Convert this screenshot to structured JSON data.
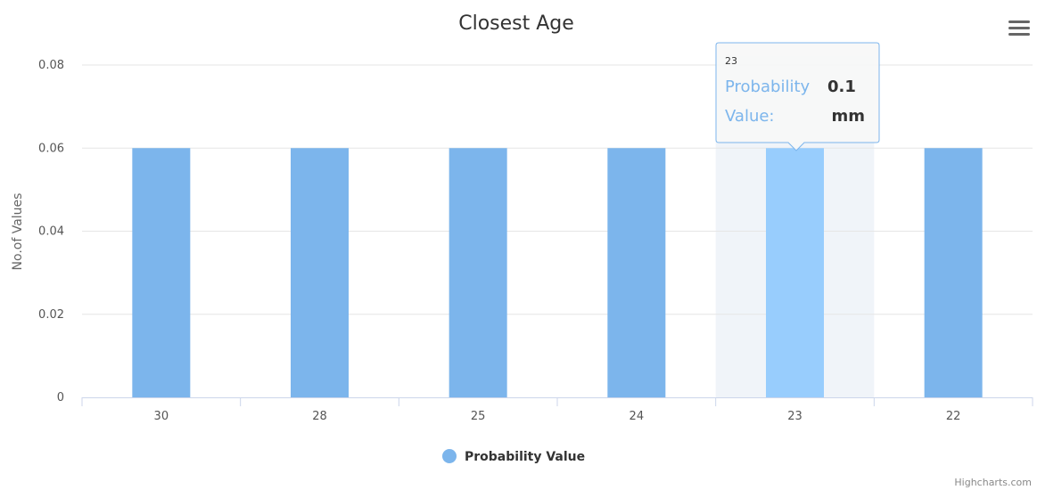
{
  "chart_data": {
    "type": "bar",
    "title": "Closest Age",
    "xlabel": "",
    "ylabel": "No.of Values",
    "categories": [
      "30",
      "28",
      "25",
      "24",
      "23",
      "22"
    ],
    "series": [
      {
        "name": "Probability Value",
        "values": [
          0.06,
          0.06,
          0.06,
          0.06,
          0.06,
          0.06
        ]
      }
    ],
    "ylim": [
      0,
      0.08
    ],
    "yticks": [
      "0",
      "0.02",
      "0.04",
      "0.06",
      "0.08"
    ],
    "grid": true,
    "legend": "bottom-center",
    "highlighted_category": "23"
  },
  "tooltip": {
    "header": "23",
    "rows": [
      {
        "key": "Probability",
        "value": "0.1"
      },
      {
        "key": "Value:",
        "value": "mm"
      }
    ]
  },
  "credits": "Highcharts.com",
  "menu_icon": "hamburger-menu-icon",
  "colors": {
    "bar": "#7cb5ec",
    "bar_hover": "#98cdfd",
    "hover_band": "#f0f4f9",
    "grid": "#e6e6e6",
    "tooltip_key": "#7cb5ec"
  }
}
